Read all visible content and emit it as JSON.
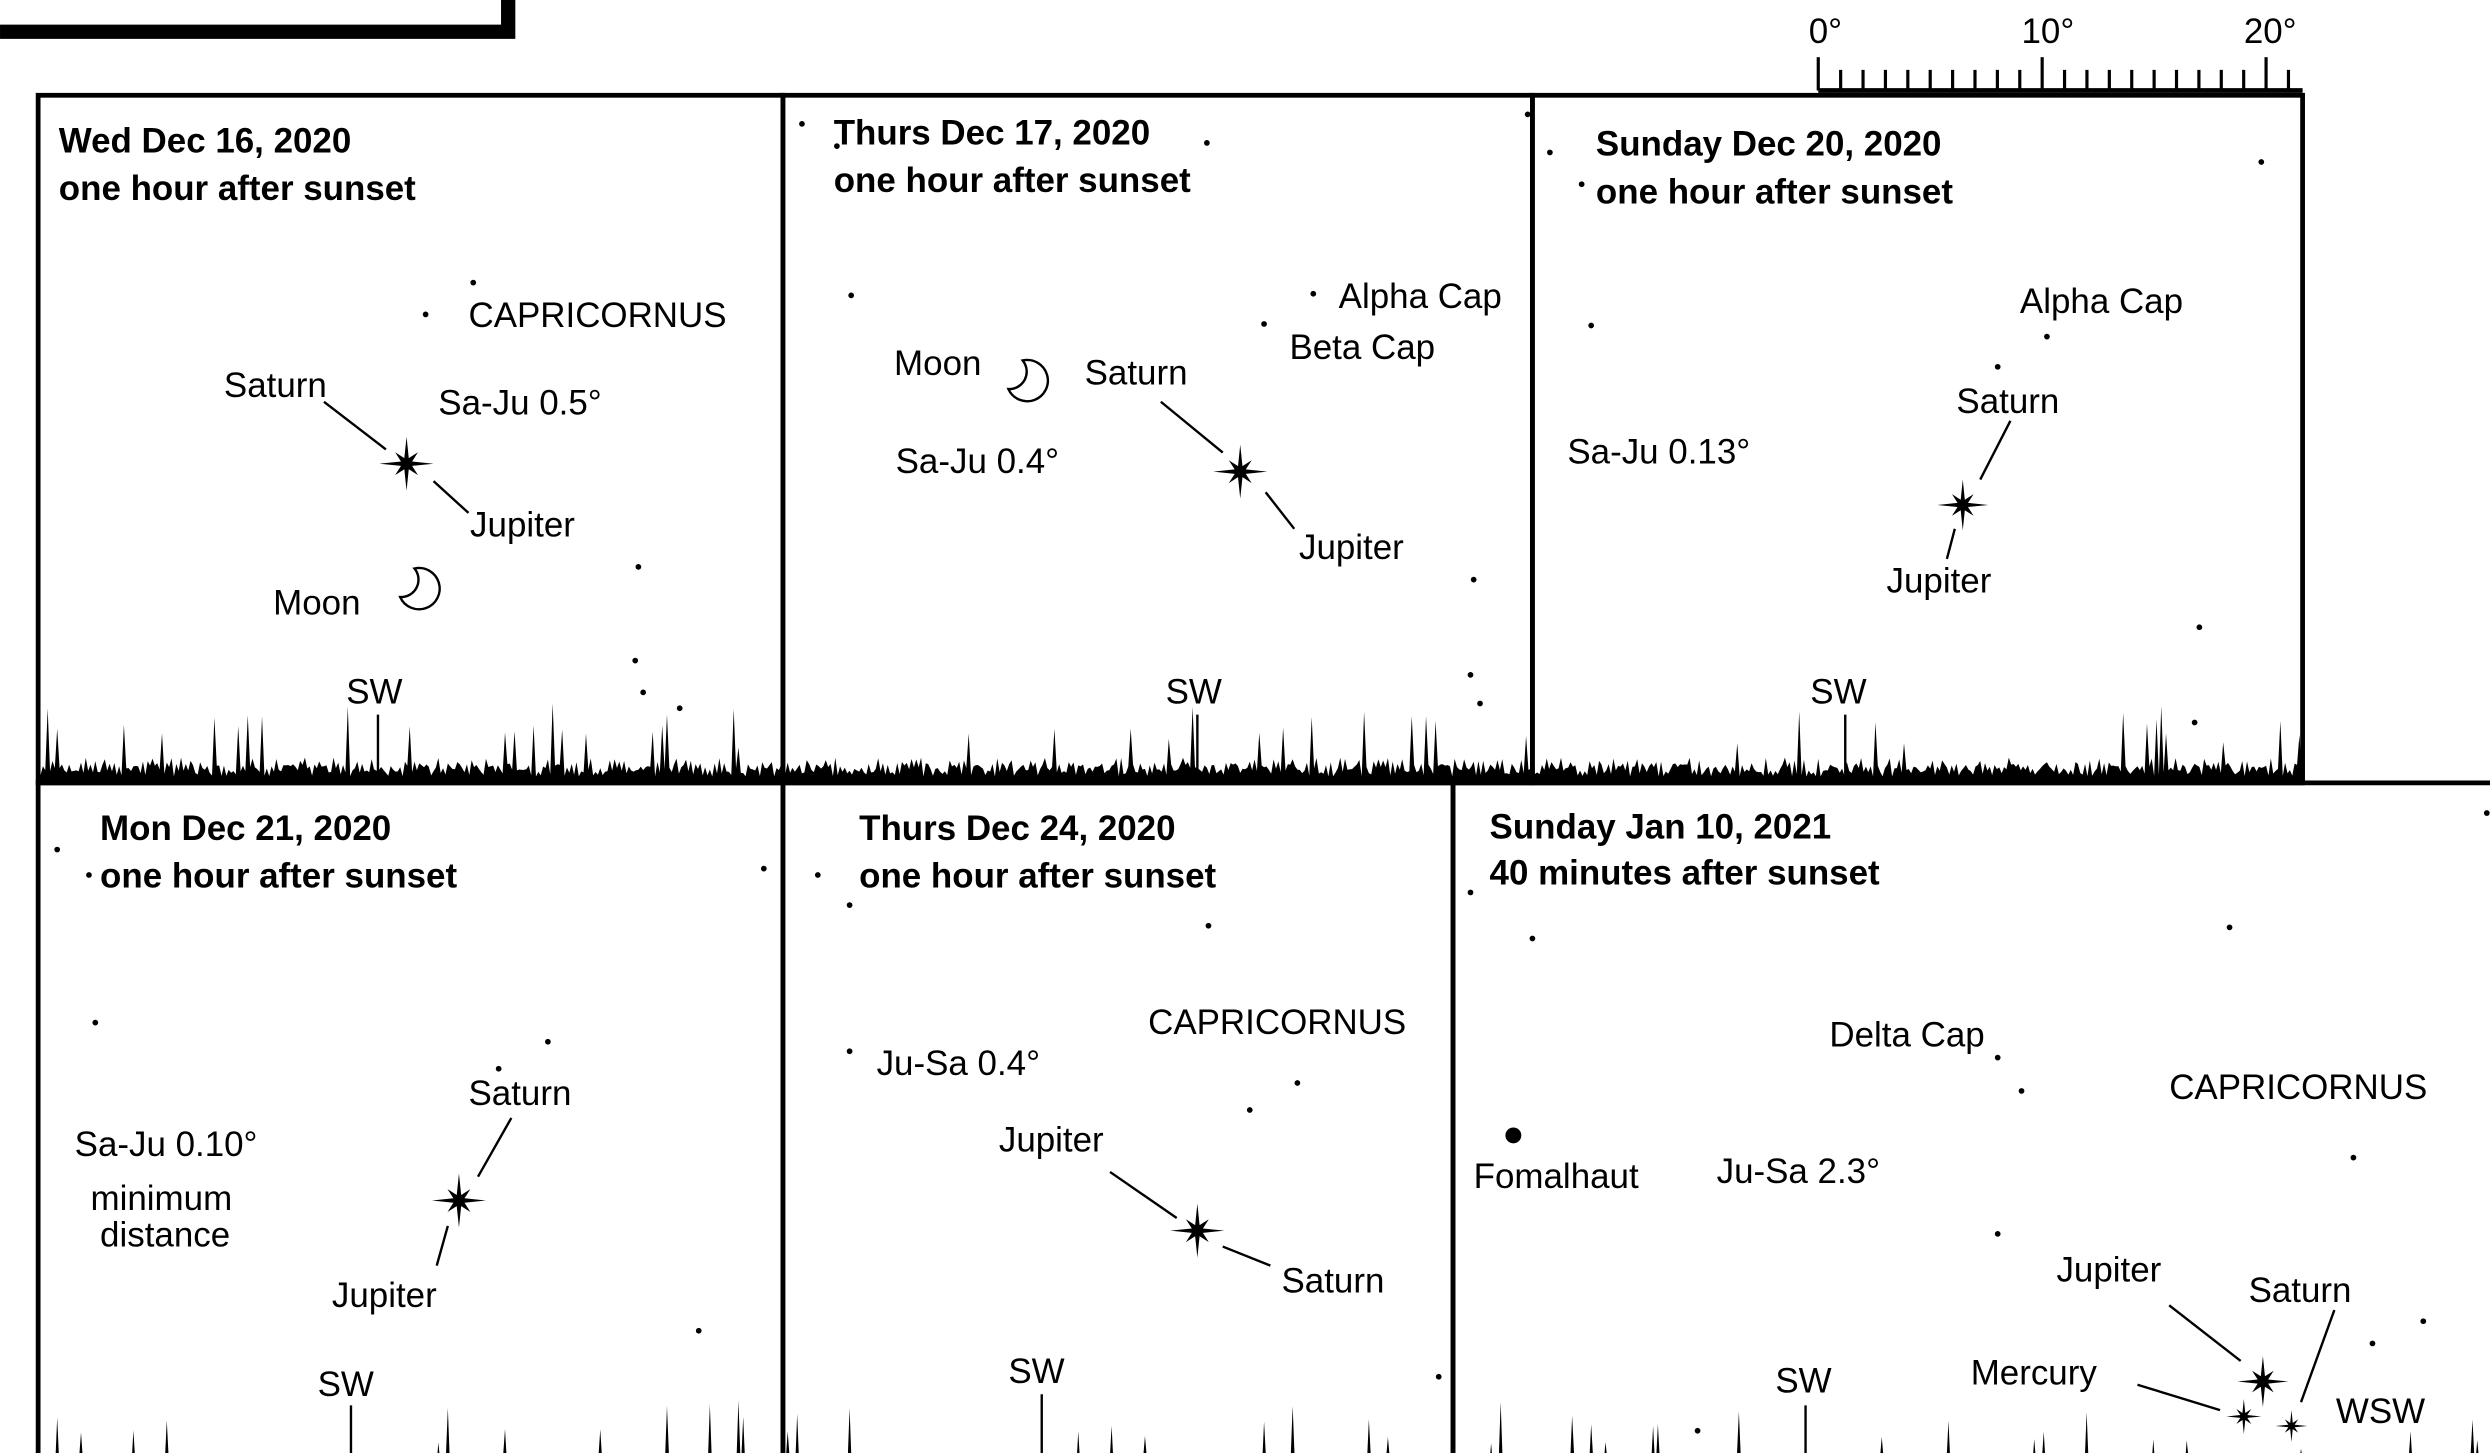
{
  "scale": {
    "labels": [
      "0°",
      "10°",
      "20°"
    ]
  },
  "panels": [
    {
      "date": "Wed Dec 16, 2020",
      "time": "one hour after sunset",
      "labels": [
        "CAPRICORNUS",
        "Saturn",
        "Sa-Ju 0.5°",
        "Jupiter",
        "Moon",
        "SW"
      ]
    },
    {
      "date": "Thurs Dec 17, 2020",
      "time": "one hour after sunset",
      "labels": [
        "Alpha Cap",
        "Beta Cap",
        "Moon",
        "Saturn",
        "Sa-Ju 0.4°",
        "Jupiter",
        "SW"
      ]
    },
    {
      "date": "Sunday Dec 20, 2020",
      "time": "one hour after sunset",
      "labels": [
        "Alpha Cap",
        "Saturn",
        "Sa-Ju 0.13°",
        "Jupiter",
        "SW"
      ]
    },
    {
      "date": "Mon Dec 21, 2020",
      "time": "one hour after sunset",
      "labels": [
        "Saturn",
        "Sa-Ju 0.10°",
        "minimum",
        "distance",
        "Jupiter",
        "SW"
      ]
    },
    {
      "date": "Thurs Dec 24, 2020",
      "time": "one hour after sunset",
      "labels": [
        "CAPRICORNUS",
        "Ju-Sa 0.4°",
        "Jupiter",
        "Saturn",
        "SW"
      ]
    },
    {
      "date": "Sunday Jan 10, 2021",
      "time": "40 minutes after sunset",
      "labels": [
        "Delta Cap",
        "CAPRICORNUS",
        "Fomalhaut",
        "Ju-Sa 2.3°",
        "Jupiter",
        "Saturn",
        "Mercury",
        "SW",
        "WSW"
      ]
    }
  ]
}
